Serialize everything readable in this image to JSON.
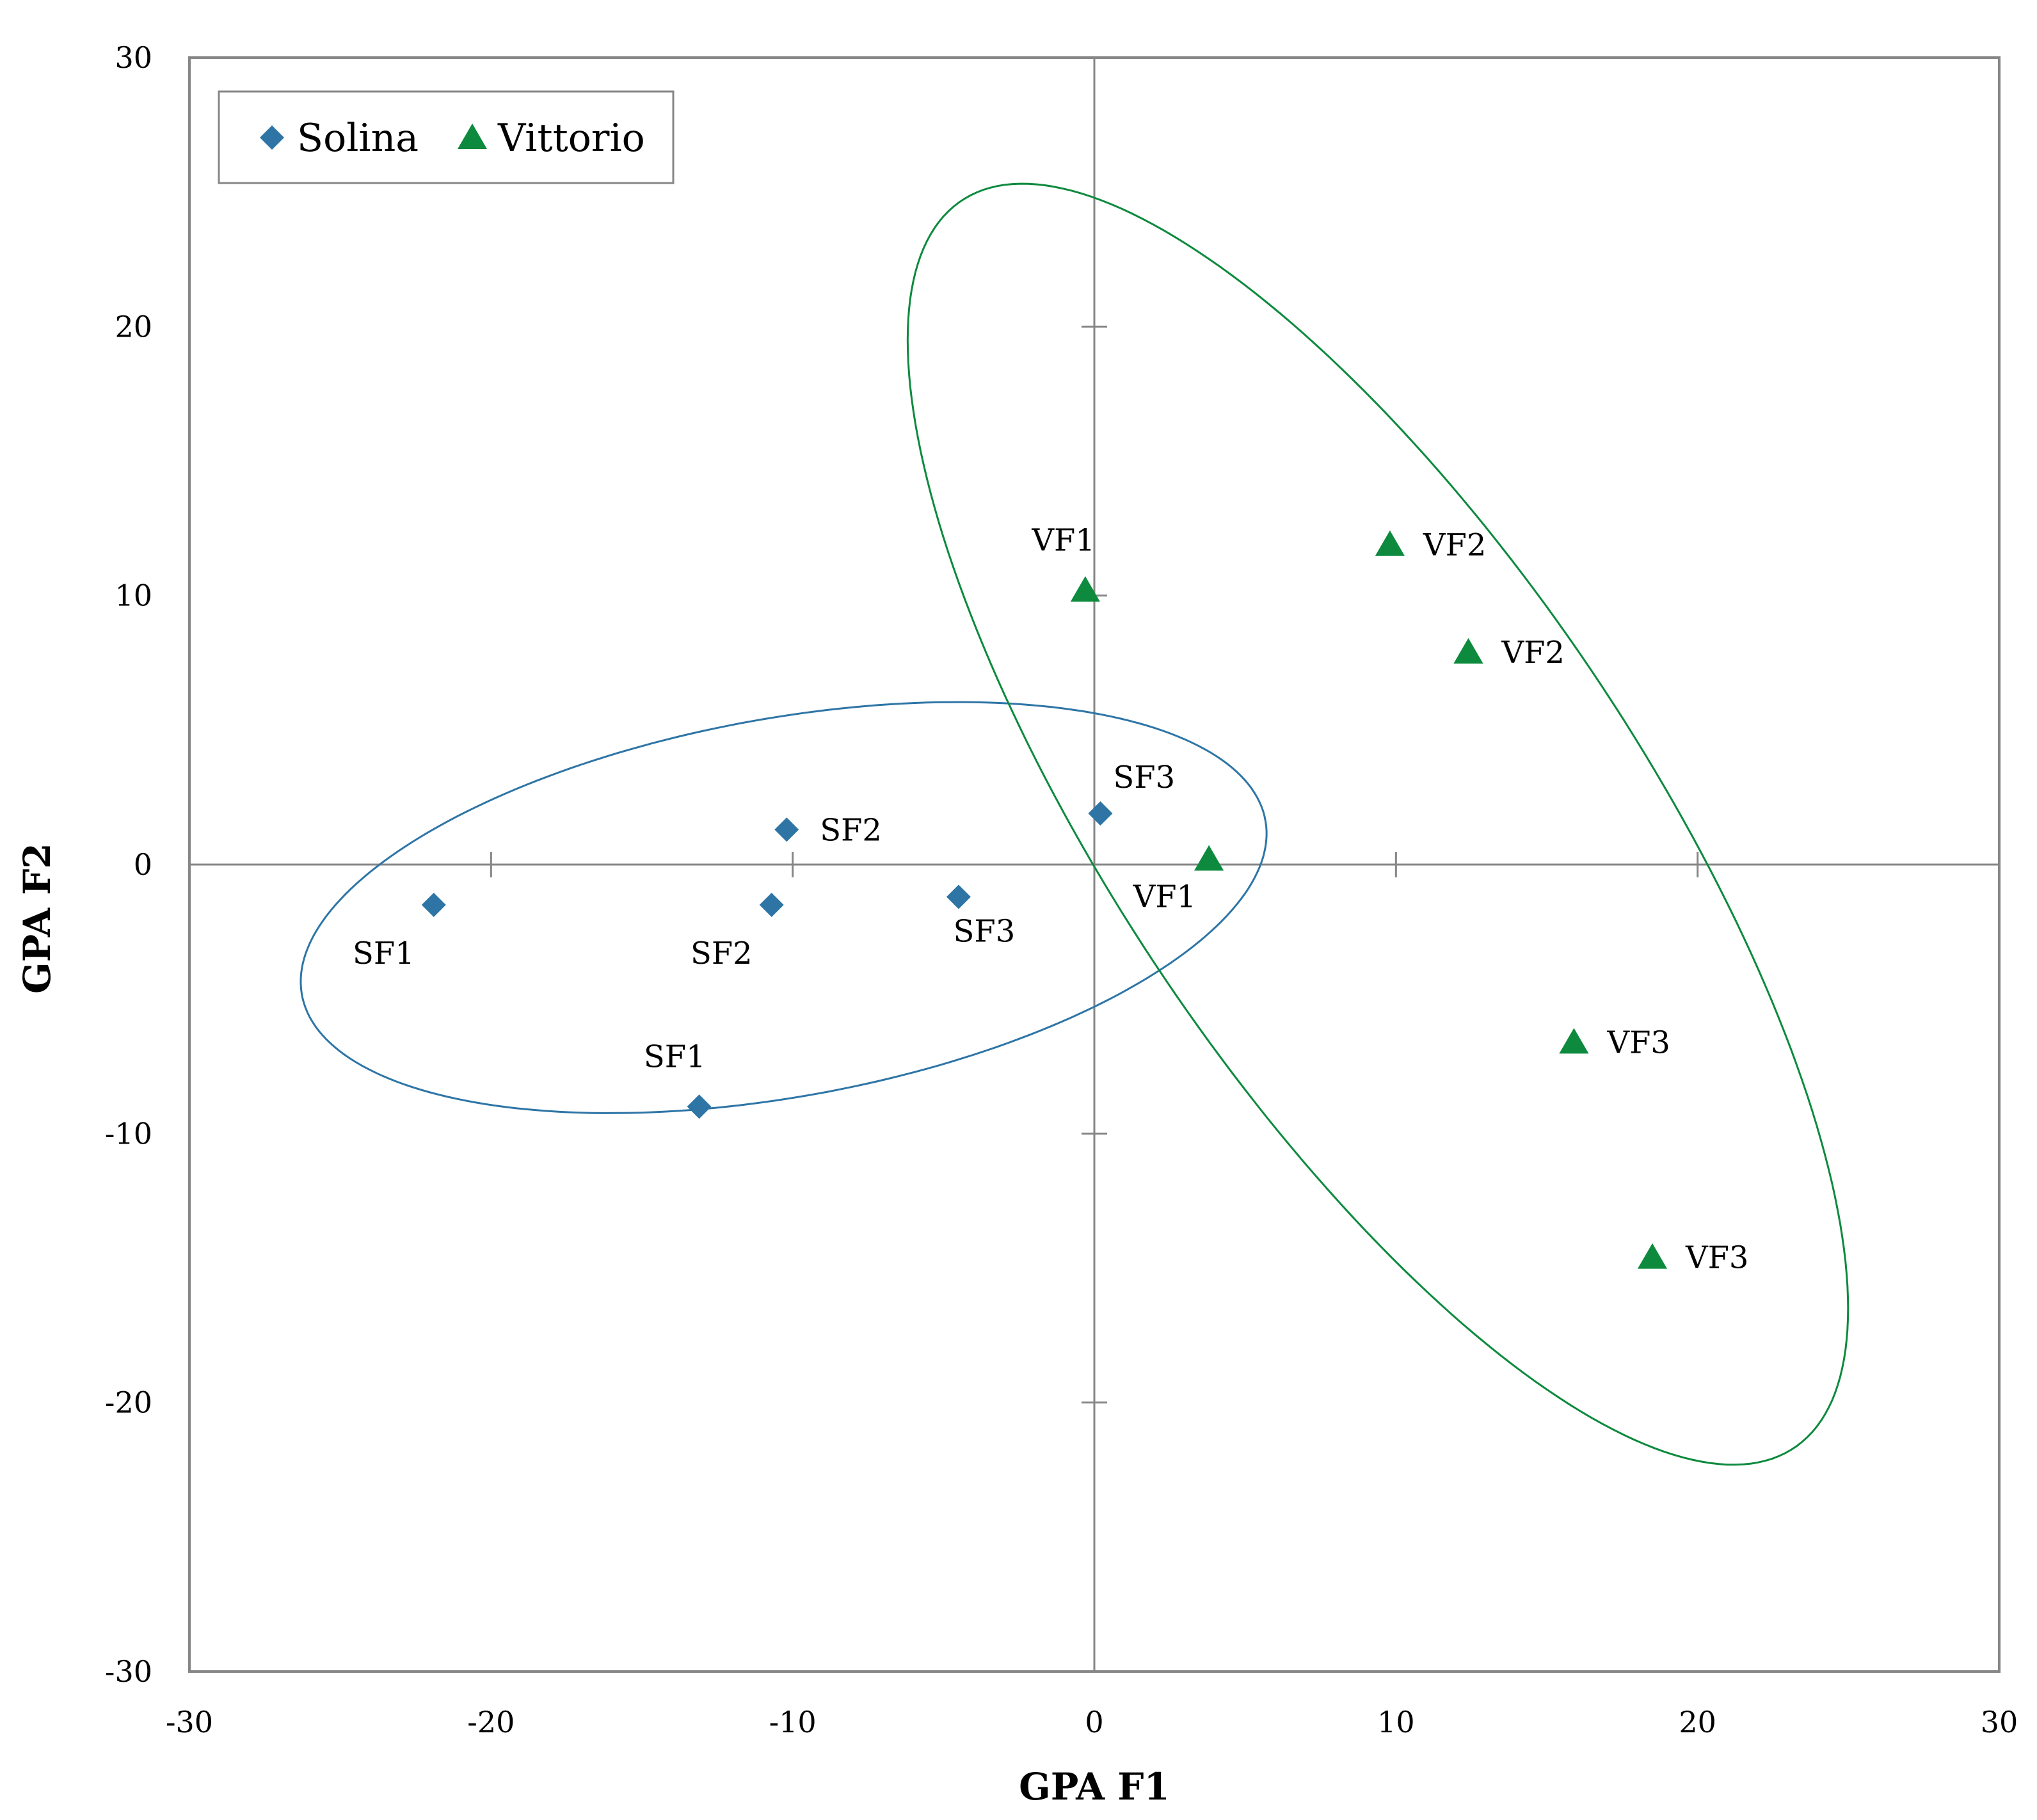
{
  "chart_data": {
    "type": "scatter",
    "title": "",
    "xlabel": "GPA F1",
    "ylabel": "GPA F2",
    "xlim": [
      -30,
      30
    ],
    "ylim": [
      -30,
      30
    ],
    "xticks": [
      -30,
      -20,
      -10,
      0,
      10,
      20,
      30
    ],
    "yticks": [
      -30,
      -20,
      -10,
      0,
      10,
      20,
      30
    ],
    "legend_position": "top-left",
    "series": [
      {
        "name": "Solina",
        "marker": "diamond",
        "color": "#2e75a6",
        "points": [
          {
            "x": -21.9,
            "y": -1.5,
            "label": "SF1",
            "label_pos": "below-left"
          },
          {
            "x": -13.1,
            "y": -9.0,
            "label": "SF1",
            "label_pos": "above-left"
          },
          {
            "x": -10.2,
            "y": 1.3,
            "label": "SF2",
            "label_pos": "right"
          },
          {
            "x": -10.7,
            "y": -1.5,
            "label": "SF2",
            "label_pos": "below-left"
          },
          {
            "x": -4.5,
            "y": -1.2,
            "label": "SF3",
            "label_pos": "below"
          },
          {
            "x": 0.2,
            "y": 1.9,
            "label": "SF3",
            "label_pos": "above-right"
          }
        ],
        "ellipse": {
          "cx": -10.3,
          "cy": -1.6,
          "rx": 16.3,
          "ry": 7.0,
          "angle_deg": 12
        }
      },
      {
        "name": "Vittorio",
        "marker": "triangle",
        "color": "#0d8a3e",
        "points": [
          {
            "x": -0.3,
            "y": 10.2,
            "label": "VF1",
            "label_pos": "above-left"
          },
          {
            "x": 3.8,
            "y": 0.2,
            "label": "VF1",
            "label_pos": "below-left"
          },
          {
            "x": 9.8,
            "y": 11.9,
            "label": "VF2",
            "label_pos": "right"
          },
          {
            "x": 12.4,
            "y": 7.9,
            "label": "VF2",
            "label_pos": "right"
          },
          {
            "x": 15.9,
            "y": -6.6,
            "label": "VF3",
            "label_pos": "right"
          },
          {
            "x": 18.5,
            "y": -14.6,
            "label": "VF3",
            "label_pos": "right"
          }
        ],
        "ellipse": {
          "cx": 9.4,
          "cy": 1.5,
          "rx": 27.0,
          "ry": 9.0,
          "angle_deg": -60
        }
      }
    ]
  }
}
